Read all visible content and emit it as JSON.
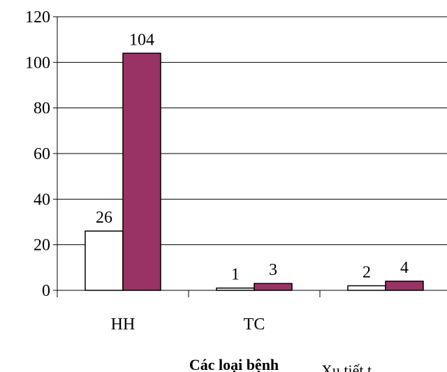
{
  "chart_data": {
    "type": "bar",
    "categories": [
      "HH",
      "TC",
      ""
    ],
    "series": [
      {
        "values": [
          26,
          1,
          2
        ],
        "color": "#ffffff"
      },
      {
        "values": [
          104,
          3,
          4
        ],
        "color": "#993366"
      }
    ],
    "data_labels": [
      [
        "26",
        "1",
        "2"
      ],
      [
        "104",
        "3",
        "4"
      ]
    ],
    "yticks": [
      "0",
      "20",
      "40",
      "60",
      "80",
      "100",
      "120"
    ],
    "ytick_values": [
      0,
      20,
      40,
      60,
      80,
      100,
      120
    ],
    "ylim": [
      0,
      120
    ],
    "grid": true,
    "legend": "none",
    "xlabel": "Các loại bệnh",
    "cutoff_text": "Xu tiết t"
  }
}
